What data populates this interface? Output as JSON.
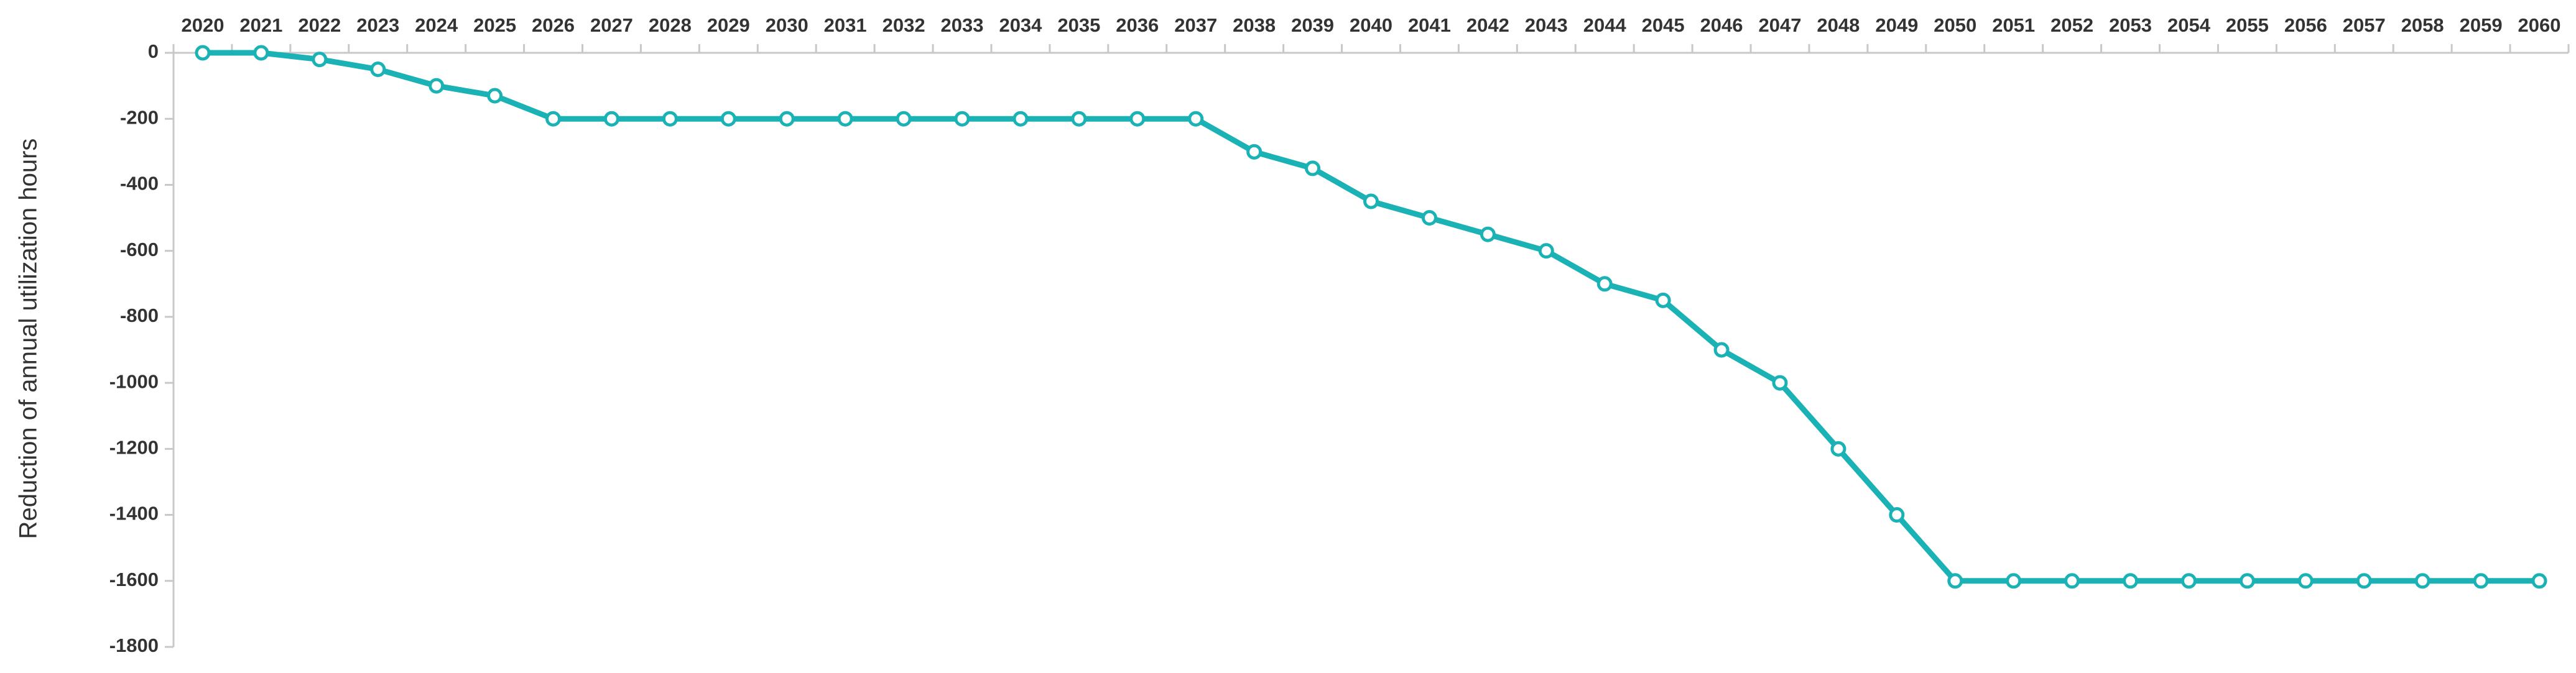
{
  "chart_data": {
    "type": "line",
    "y_label": "Reduction of annual utilization hours",
    "categories": [
      "2020",
      "2021",
      "2022",
      "2023",
      "2024",
      "2025",
      "2026",
      "2027",
      "2028",
      "2029",
      "2030",
      "2031",
      "2032",
      "2033",
      "2034",
      "2035",
      "2036",
      "2037",
      "2038",
      "2039",
      "2040",
      "2041",
      "2042",
      "2043",
      "2044",
      "2045",
      "2046",
      "2047",
      "2048",
      "2049",
      "2050",
      "2051",
      "2052",
      "2053",
      "2054",
      "2055",
      "2056",
      "2057",
      "2058",
      "2059",
      "2060"
    ],
    "series": [
      {
        "color": "#1ab2b4",
        "values": [
          0,
          0,
          -20,
          -50,
          -100,
          -130,
          -200,
          -200,
          -200,
          -200,
          -200,
          -200,
          -200,
          -200,
          -200,
          -200,
          -200,
          -200,
          -300,
          -350,
          -450,
          -500,
          -550,
          -600,
          -700,
          -750,
          -900,
          -1000,
          -1200,
          -1400,
          -1600,
          -1600,
          -1600,
          -1600,
          -1600,
          -1600,
          -1600,
          -1600,
          -1600,
          -1600,
          -1600
        ]
      }
    ],
    "ylim": [
      -1800,
      0
    ],
    "yticks": [
      0,
      -200,
      -400,
      -600,
      -800,
      -1000,
      -1200,
      -1400,
      -1600,
      -1800
    ],
    "x_axis_position": "top"
  }
}
